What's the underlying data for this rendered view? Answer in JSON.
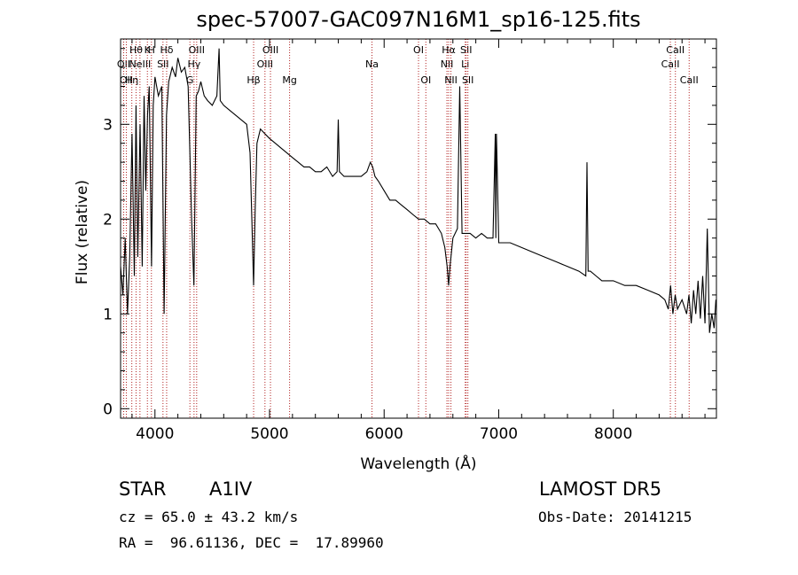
{
  "chart_data": {
    "type": "line",
    "title": "spec-57007-GAC097N16M1_sp16-125.fits",
    "xlabel": "Wavelength (Å)",
    "ylabel": "Flux (relative)",
    "xlim": [
      3700,
      8900
    ],
    "ylim": [
      -0.1,
      3.9
    ],
    "xticks": [
      4000,
      5000,
      6000,
      7000,
      8000
    ],
    "yticks": [
      0,
      1,
      2,
      3
    ],
    "grid": false,
    "series_color": "#000000",
    "line_marker_color": "#b22222",
    "series": [
      {
        "x": [
          3700,
          3720,
          3740,
          3760,
          3780,
          3800,
          3820,
          3835,
          3850,
          3870,
          3889,
          3905,
          3920,
          3935,
          3950,
          3970,
          3985,
          4000,
          4030,
          4060,
          4080,
          4101,
          4120,
          4150,
          4180,
          4200,
          4230,
          4260,
          4290,
          4320,
          4340,
          4360,
          4380,
          4400,
          4430,
          4460,
          4500,
          4540,
          4560,
          4570,
          4600,
          4650,
          4700,
          4750,
          4800,
          4830,
          4850,
          4861,
          4875,
          4890,
          4920,
          4960,
          5000,
          5050,
          5100,
          5150,
          5200,
          5250,
          5300,
          5350,
          5400,
          5450,
          5500,
          5550,
          5590,
          5600,
          5610,
          5650,
          5700,
          5750,
          5800,
          5850,
          5880,
          5900,
          5920,
          5950,
          6000,
          6050,
          6100,
          6150,
          6200,
          6250,
          6300,
          6350,
          6400,
          6450,
          6500,
          6530,
          6550,
          6563,
          6575,
          6600,
          6640,
          6660,
          6680,
          6700,
          6750,
          6800,
          6850,
          6900,
          6950,
          6970,
          6975,
          6980,
          7000,
          7050,
          7100,
          7200,
          7300,
          7400,
          7500,
          7600,
          7700,
          7760,
          7770,
          7780,
          7800,
          7850,
          7900,
          8000,
          8100,
          8200,
          8300,
          8400,
          8450,
          8480,
          8500,
          8520,
          8540,
          8560,
          8600,
          8640,
          8660,
          8680,
          8700,
          8720,
          8740,
          8760,
          8780,
          8800,
          8820,
          8840,
          8860,
          8880,
          8895
        ],
        "y": [
          1.5,
          1.2,
          1.8,
          1.0,
          1.6,
          2.9,
          1.4,
          3.2,
          1.6,
          3.0,
          1.5,
          3.3,
          2.3,
          3.1,
          3.4,
          1.5,
          3.2,
          3.5,
          3.3,
          3.4,
          1.0,
          3.1,
          3.45,
          3.6,
          3.5,
          3.7,
          3.55,
          3.6,
          3.4,
          2.0,
          1.3,
          3.3,
          3.35,
          3.45,
          3.3,
          3.25,
          3.2,
          3.3,
          3.8,
          3.25,
          3.2,
          3.15,
          3.1,
          3.05,
          3.0,
          2.7,
          1.8,
          1.3,
          2.1,
          2.8,
          2.95,
          2.9,
          2.85,
          2.8,
          2.75,
          2.7,
          2.65,
          2.6,
          2.55,
          2.55,
          2.5,
          2.5,
          2.55,
          2.45,
          2.5,
          3.05,
          2.5,
          2.45,
          2.45,
          2.45,
          2.45,
          2.5,
          2.6,
          2.55,
          2.45,
          2.4,
          2.3,
          2.2,
          2.2,
          2.15,
          2.1,
          2.05,
          2.0,
          2.0,
          1.95,
          1.95,
          1.85,
          1.7,
          1.5,
          1.3,
          1.5,
          1.8,
          1.9,
          3.4,
          1.85,
          1.85,
          1.85,
          1.8,
          1.85,
          1.8,
          1.8,
          2.9,
          1.8,
          2.9,
          1.75,
          1.75,
          1.75,
          1.7,
          1.65,
          1.6,
          1.55,
          1.5,
          1.45,
          1.4,
          2.6,
          1.45,
          1.45,
          1.4,
          1.35,
          1.35,
          1.3,
          1.3,
          1.25,
          1.2,
          1.15,
          1.05,
          1.3,
          1.0,
          1.2,
          1.05,
          1.15,
          1.0,
          1.2,
          0.9,
          1.25,
          1.0,
          1.35,
          0.95,
          1.4,
          0.9,
          1.9,
          0.8,
          1.0,
          0.85,
          1.15
        ]
      }
    ],
    "line_markers": [
      {
        "wave": 3727,
        "label": "OII",
        "row": 2
      },
      {
        "wave": 3750,
        "label": "OII",
        "row": 3
      },
      {
        "wave": 3798,
        "label": "Hη",
        "row": 3
      },
      {
        "wave": 3835,
        "label": "Hθ",
        "row": 1
      },
      {
        "wave": 3869,
        "label": "NeIII",
        "row": 2
      },
      {
        "wave": 3934,
        "label": "K",
        "row": 1
      },
      {
        "wave": 3969,
        "label": "H",
        "row": 1
      },
      {
        "wave": 4070,
        "label": "SII",
        "row": 2
      },
      {
        "wave": 4102,
        "label": "Hδ",
        "row": 1
      },
      {
        "wave": 4305,
        "label": "G",
        "row": 3
      },
      {
        "wave": 4341,
        "label": "Hγ",
        "row": 2
      },
      {
        "wave": 4364,
        "label": "OIII",
        "row": 1
      },
      {
        "wave": 4861,
        "label": "Hβ",
        "row": 3
      },
      {
        "wave": 4960,
        "label": "OIII",
        "row": 2
      },
      {
        "wave": 5008,
        "label": "OIII",
        "row": 1
      },
      {
        "wave": 5175,
        "label": "Mg",
        "row": 3
      },
      {
        "wave": 5894,
        "label": "Na",
        "row": 2
      },
      {
        "wave": 6300,
        "label": "OI",
        "row": 1
      },
      {
        "wave": 6364,
        "label": "OI",
        "row": 3
      },
      {
        "wave": 6548,
        "label": "NII",
        "row": 2
      },
      {
        "wave": 6563,
        "label": "Hα",
        "row": 1
      },
      {
        "wave": 6583,
        "label": "NII",
        "row": 3
      },
      {
        "wave": 6708,
        "label": "Li",
        "row": 2
      },
      {
        "wave": 6716,
        "label": "SII",
        "row": 1
      },
      {
        "wave": 6731,
        "label": "SII",
        "row": 3
      },
      {
        "wave": 8498,
        "label": "CaII",
        "row": 2
      },
      {
        "wave": 8542,
        "label": "CaII",
        "row": 1
      },
      {
        "wave": 8662,
        "label": "CaII",
        "row": 3
      }
    ]
  },
  "info": {
    "class": "STAR",
    "subclass": "A1IV",
    "survey": "LAMOST DR5",
    "cz": "cz = 65.0 ± 43.2 km/s",
    "obs_date": "Obs-Date: 20141215",
    "radec": "RA =  96.61136, DEC =  17.89960"
  }
}
